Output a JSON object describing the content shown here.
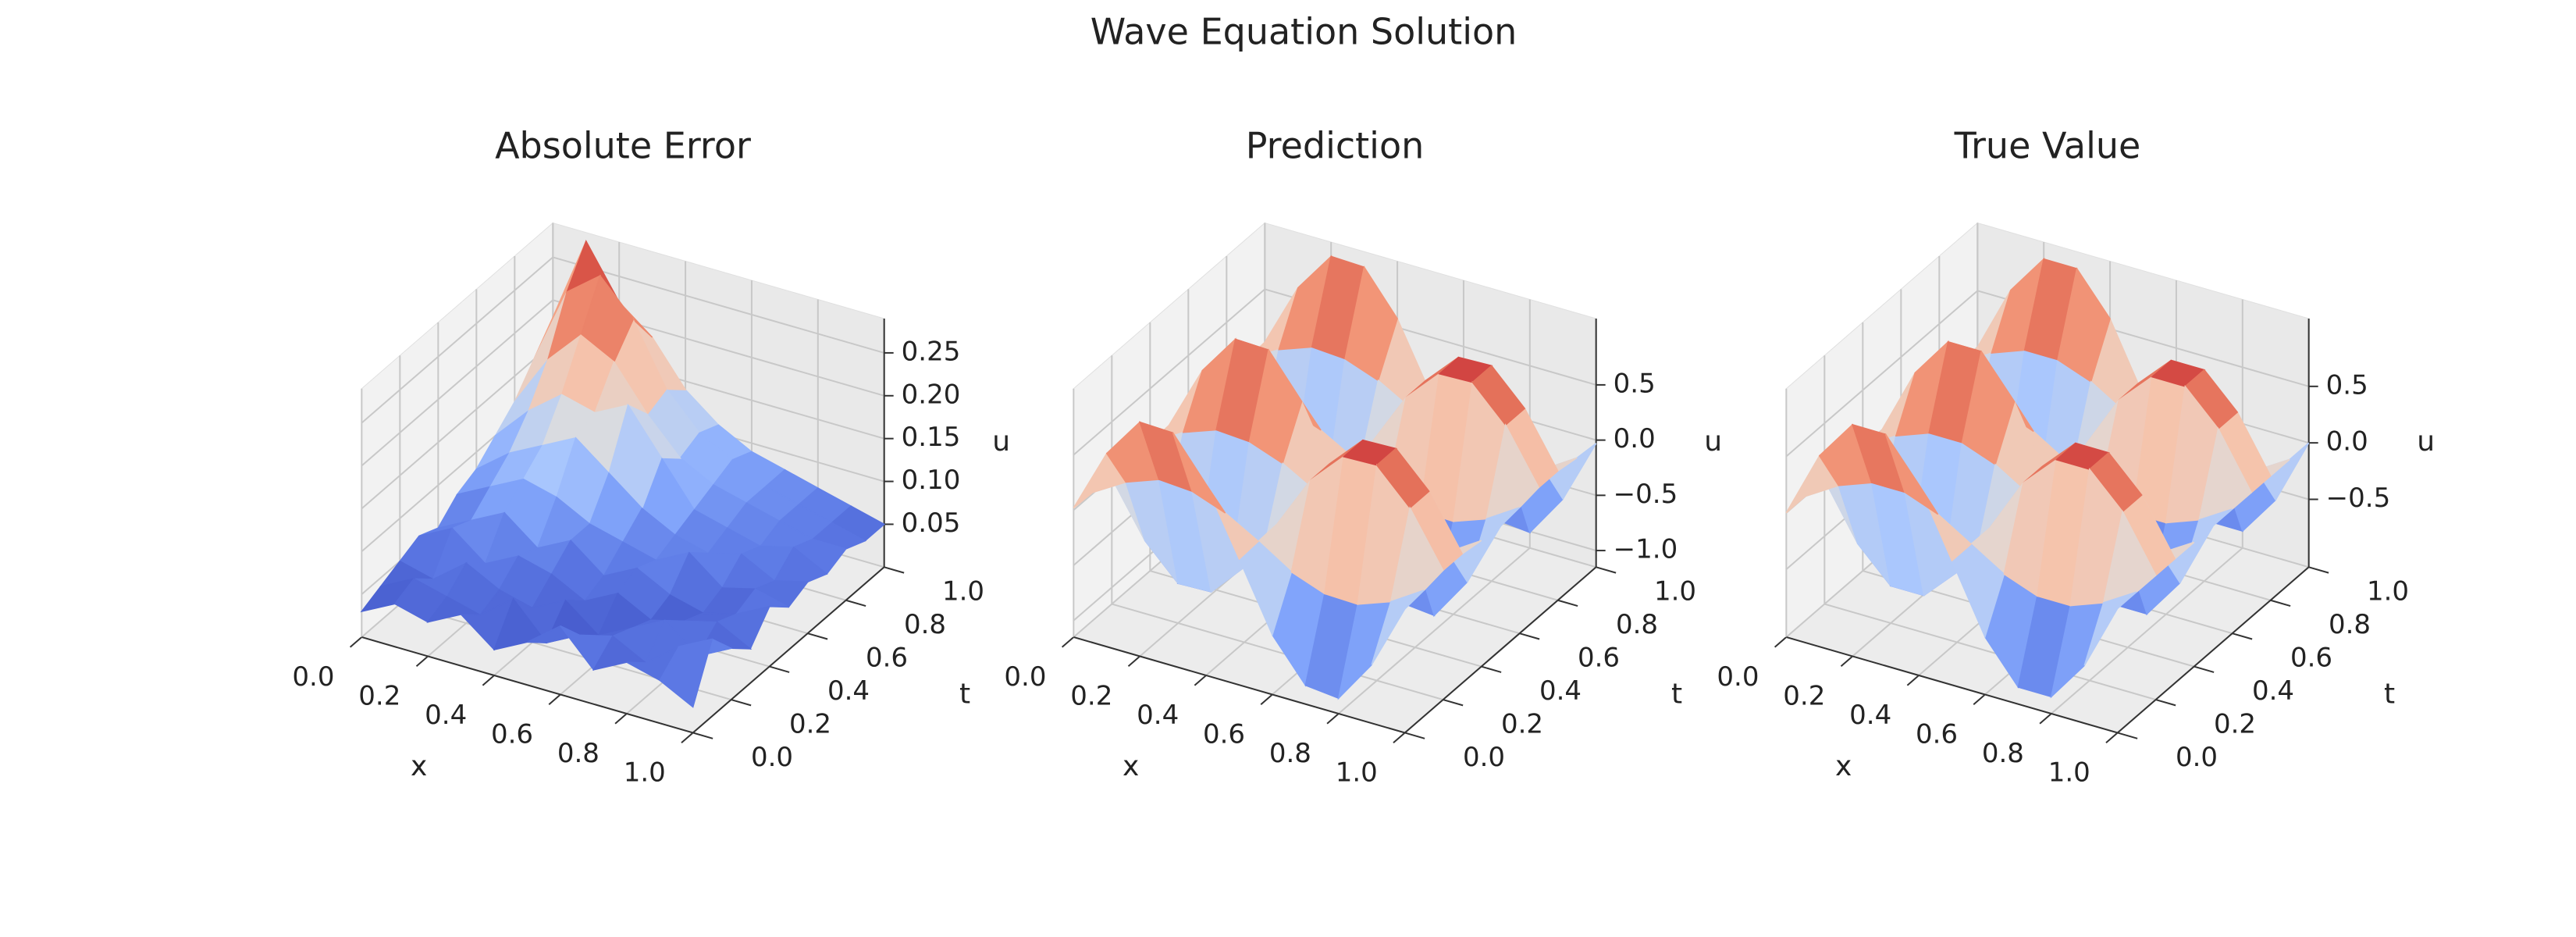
{
  "title": "Wave Equation Solution",
  "chart_data": [
    {
      "type": "surface",
      "title": "Absolute Error",
      "xlabel": "x",
      "ylabel": "t",
      "zlabel": "u",
      "colormap": "coolwarm",
      "x": [
        0,
        0.1,
        0.2,
        0.3,
        0.4,
        0.5,
        0.6,
        0.7,
        0.8,
        0.9,
        1
      ],
      "y": [
        0,
        0.1,
        0.2,
        0.3,
        0.4,
        0.5,
        0.6,
        0.7,
        0.8,
        0.9,
        1
      ],
      "z": [
        [
          0.03,
          0.05,
          0.04,
          0.06,
          0.03,
          0.05,
          0.08,
          0.04,
          0.06,
          0.05,
          0.03
        ],
        [
          0.04,
          0.06,
          0.05,
          0.04,
          0.07,
          0.03,
          0.05,
          0.06,
          0.04,
          0.07,
          0.09
        ],
        [
          0.05,
          0.04,
          0.07,
          0.05,
          0.04,
          0.06,
          0.03,
          0.05,
          0.07,
          0.04,
          0.06
        ],
        [
          0.06,
          0.08,
          0.05,
          0.07,
          0.06,
          0.04,
          0.06,
          0.04,
          0.05,
          0.06,
          0.04
        ],
        [
          0.05,
          0.07,
          0.09,
          0.06,
          0.08,
          0.05,
          0.07,
          0.05,
          0.04,
          0.05,
          0.07
        ],
        [
          0.07,
          0.09,
          0.11,
          0.1,
          0.08,
          0.07,
          0.06,
          0.08,
          0.05,
          0.06,
          0.05
        ],
        [
          0.08,
          0.11,
          0.13,
          0.15,
          0.12,
          0.09,
          0.07,
          0.06,
          0.07,
          0.05,
          0.06
        ],
        [
          0.1,
          0.14,
          0.17,
          0.16,
          0.18,
          0.13,
          0.08,
          0.07,
          0.06,
          0.07,
          0.05
        ],
        [
          0.12,
          0.18,
          0.22,
          0.2,
          0.15,
          0.11,
          0.09,
          0.08,
          0.07,
          0.06,
          0.06
        ],
        [
          0.15,
          0.24,
          0.27,
          0.23,
          0.16,
          0.12,
          0.1,
          0.08,
          0.07,
          0.06,
          0.05
        ],
        [
          0.18,
          0.28,
          0.22,
          0.19,
          0.14,
          0.11,
          0.09,
          0.08,
          0.07,
          0.06,
          0.05
        ]
      ],
      "xlim": [
        0,
        1
      ],
      "ylim": [
        0,
        1
      ],
      "zlim": [
        0,
        0.29
      ],
      "xticks": [
        {
          "value": 0,
          "label": "0.0"
        },
        0.2,
        0.4,
        0.6,
        0.8,
        {
          "value": 1,
          "label": "1.0"
        }
      ],
      "yticks": [
        {
          "value": 0,
          "label": "0.0"
        },
        0.2,
        0.4,
        0.6,
        0.8,
        {
          "value": 1,
          "label": "1.0"
        }
      ],
      "zticks": [
        0.05,
        {
          "value": 0.1,
          "label": "0.10"
        },
        0.15,
        {
          "value": 0.2,
          "label": "0.20"
        },
        0.25
      ]
    },
    {
      "type": "surface",
      "title": "Prediction",
      "xlabel": "x",
      "ylabel": "t",
      "zlabel": "u",
      "colormap": "coolwarm",
      "x": [
        0,
        0.1,
        0.2,
        0.3,
        0.4,
        0.5,
        0.6,
        0.7,
        0.8,
        0.9,
        1
      ],
      "y": [
        0,
        0.1,
        0.2,
        0.3,
        0.4,
        0.5,
        0.6,
        0.7,
        0.8,
        0.9,
        1
      ],
      "z": [
        [
          0.02,
          0.6,
          0.97,
          0.96,
          0.58,
          -0.01,
          -0.61,
          -0.98,
          -1.01,
          -0.62,
          -0.03
        ],
        [
          0.01,
          0.19,
          0.3,
          0.28,
          0.17,
          0,
          -0.19,
          -0.3,
          -0.31,
          -0.2,
          -0.01
        ],
        [
          -0.01,
          -0.49,
          -0.79,
          -0.78,
          -0.47,
          0.01,
          0.49,
          0.79,
          0.8,
          0.5,
          0.02
        ],
        [
          -0.01,
          -0.49,
          -0.79,
          -0.78,
          -0.47,
          0.01,
          0.49,
          0.79,
          0.8,
          0.5,
          0.02
        ],
        [
          0.01,
          0.19,
          0.3,
          0.28,
          0.17,
          0,
          -0.19,
          -0.3,
          -0.31,
          -0.2,
          -0.01
        ],
        [
          0.02,
          0.6,
          0.97,
          0.96,
          0.58,
          -0.01,
          -0.61,
          -0.98,
          -1.01,
          -0.62,
          -0.03
        ],
        [
          0.01,
          0.19,
          0.3,
          0.28,
          0.17,
          0,
          -0.19,
          -0.3,
          -0.31,
          -0.2,
          -0.01
        ],
        [
          -0.01,
          -0.49,
          -0.79,
          -0.78,
          -0.47,
          0.01,
          0.49,
          0.79,
          0.8,
          0.5,
          0.02
        ],
        [
          -0.01,
          -0.49,
          -0.79,
          -0.78,
          -0.47,
          0.01,
          0.49,
          0.79,
          0.8,
          0.5,
          0.02
        ],
        [
          0.01,
          0.19,
          0.3,
          0.28,
          0.17,
          0,
          -0.19,
          -0.3,
          -0.31,
          -0.2,
          -0.01
        ],
        [
          0.02,
          0.6,
          0.97,
          0.96,
          0.58,
          -0.01,
          -0.61,
          -0.98,
          -1.01,
          -0.62,
          -0.03
        ]
      ],
      "xlim": [
        0,
        1
      ],
      "ylim": [
        0,
        1
      ],
      "zlim": [
        -1.15,
        1.1
      ],
      "xticks": [
        {
          "value": 0,
          "label": "0.0"
        },
        0.2,
        0.4,
        0.6,
        0.8,
        {
          "value": 1,
          "label": "1.0"
        }
      ],
      "yticks": [
        {
          "value": 0,
          "label": "0.0"
        },
        0.2,
        0.4,
        0.6,
        0.8,
        {
          "value": 1,
          "label": "1.0"
        }
      ],
      "zticks": [
        {
          "value": -1,
          "label": "−1.0"
        },
        {
          "value": -0.5,
          "label": "−0.5"
        },
        {
          "value": 0,
          "label": "0.0"
        },
        0.5
      ]
    },
    {
      "type": "surface",
      "title": "True Value",
      "xlabel": "x",
      "ylabel": "t",
      "zlabel": "u",
      "colormap": "coolwarm",
      "x": [
        0,
        0.1,
        0.2,
        0.3,
        0.4,
        0.5,
        0.6,
        0.7,
        0.8,
        0.9,
        1
      ],
      "y": [
        0,
        0.1,
        0.2,
        0.3,
        0.4,
        0.5,
        0.6,
        0.7,
        0.8,
        0.9,
        1
      ],
      "z": [
        [
          0,
          0.59,
          0.95,
          0.95,
          0.59,
          0,
          -0.59,
          -0.95,
          -0.95,
          -0.59,
          0
        ],
        [
          0,
          0.18,
          0.29,
          0.29,
          0.18,
          0,
          -0.18,
          -0.29,
          -0.29,
          -0.18,
          0
        ],
        [
          0,
          -0.48,
          -0.77,
          -0.77,
          -0.48,
          0,
          0.48,
          0.77,
          0.77,
          0.48,
          0
        ],
        [
          0,
          -0.48,
          -0.77,
          -0.77,
          -0.48,
          0,
          0.48,
          0.77,
          0.77,
          0.48,
          0
        ],
        [
          0,
          0.18,
          0.29,
          0.29,
          0.18,
          0,
          -0.18,
          -0.29,
          -0.29,
          -0.18,
          0
        ],
        [
          0,
          0.59,
          0.95,
          0.95,
          0.59,
          0,
          -0.59,
          -0.95,
          -0.95,
          -0.59,
          0
        ],
        [
          0,
          0.18,
          0.29,
          0.29,
          0.18,
          0,
          -0.18,
          -0.29,
          -0.29,
          -0.18,
          0
        ],
        [
          0,
          -0.48,
          -0.77,
          -0.77,
          -0.48,
          0,
          0.48,
          0.77,
          0.77,
          0.48,
          0
        ],
        [
          0,
          -0.48,
          -0.77,
          -0.77,
          -0.48,
          0,
          0.48,
          0.77,
          0.77,
          0.48,
          0
        ],
        [
          0,
          0.18,
          0.29,
          0.29,
          0.18,
          0,
          -0.18,
          -0.29,
          -0.29,
          -0.18,
          0
        ],
        [
          0,
          0.59,
          0.95,
          0.95,
          0.59,
          0,
          -0.59,
          -0.95,
          -0.95,
          -0.59,
          0
        ]
      ],
      "xlim": [
        0,
        1
      ],
      "ylim": [
        0,
        1
      ],
      "zlim": [
        -1.1,
        1.1
      ],
      "xticks": [
        {
          "value": 0,
          "label": "0.0"
        },
        0.2,
        0.4,
        0.6,
        0.8,
        {
          "value": 1,
          "label": "1.0"
        }
      ],
      "yticks": [
        {
          "value": 0,
          "label": "0.0"
        },
        0.2,
        0.4,
        0.6,
        0.8,
        {
          "value": 1,
          "label": "1.0"
        }
      ],
      "zticks": [
        {
          "value": -0.5,
          "label": "−0.5"
        },
        {
          "value": 0,
          "label": "0.0"
        },
        0.5
      ]
    }
  ]
}
